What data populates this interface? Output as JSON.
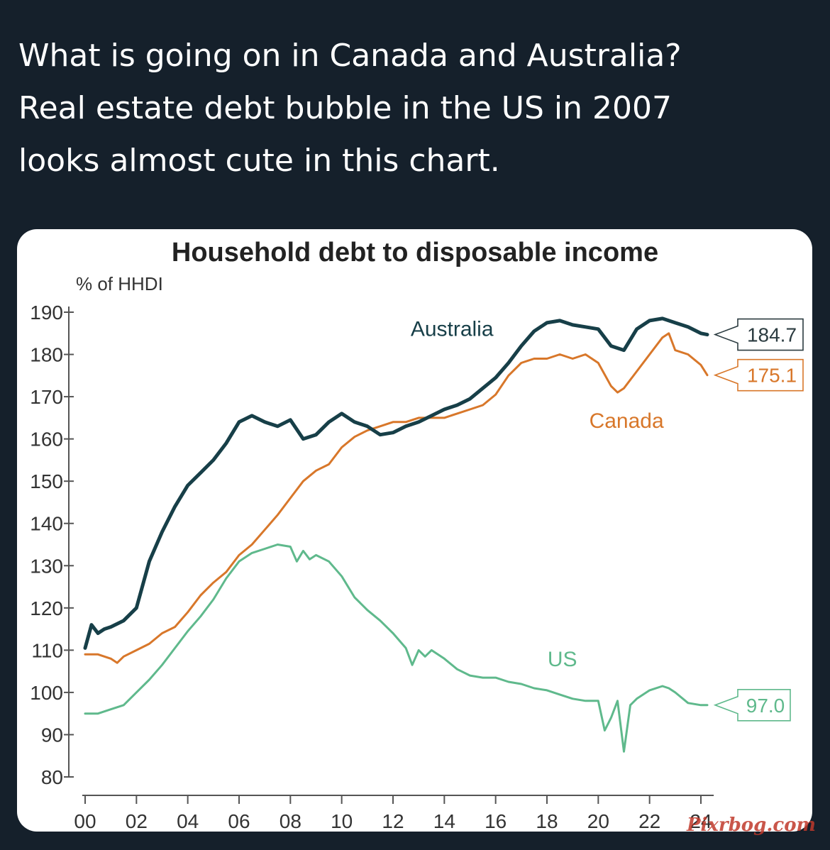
{
  "post": {
    "lines": [
      "What is going on in Canada and Australia?",
      "Real estate debt bubble in the US in 2007",
      "looks almost cute in this chart."
    ]
  },
  "watermark": "Pixrbog.com",
  "chart_data": {
    "type": "line",
    "title": "Household debt to disposable income",
    "ylabel": "% of HHDI",
    "xlabel": "",
    "ylim": [
      80,
      190
    ],
    "xlim": [
      2000,
      2024.5
    ],
    "y_ticks": [
      80,
      90,
      100,
      110,
      120,
      130,
      140,
      150,
      160,
      170,
      180,
      190
    ],
    "x_ticks": [
      {
        "value": 2000,
        "label": "00"
      },
      {
        "value": 2002,
        "label": "02"
      },
      {
        "value": 2004,
        "label": "04"
      },
      {
        "value": 2006,
        "label": "06"
      },
      {
        "value": 2008,
        "label": "08"
      },
      {
        "value": 2010,
        "label": "10"
      },
      {
        "value": 2012,
        "label": "12"
      },
      {
        "value": 2014,
        "label": "14"
      },
      {
        "value": 2016,
        "label": "16"
      },
      {
        "value": 2018,
        "label": "18"
      },
      {
        "value": 2020,
        "label": "20"
      },
      {
        "value": 2022,
        "label": "22"
      },
      {
        "value": 2024,
        "label": "24"
      }
    ],
    "grid": false,
    "series": [
      {
        "name": "Australia",
        "color": "#173f48",
        "end_label": "184.7",
        "x": [
          2000.0,
          2000.25,
          2000.5,
          2000.75,
          2001.0,
          2001.5,
          2002.0,
          2002.5,
          2003.0,
          2003.5,
          2004.0,
          2004.5,
          2005.0,
          2005.5,
          2006.0,
          2006.5,
          2007.0,
          2007.5,
          2008.0,
          2008.5,
          2009.0,
          2009.5,
          2010.0,
          2010.5,
          2011.0,
          2011.5,
          2012.0,
          2012.5,
          2013.0,
          2013.5,
          2014.0,
          2014.5,
          2015.0,
          2015.5,
          2016.0,
          2016.5,
          2017.0,
          2017.5,
          2018.0,
          2018.5,
          2019.0,
          2019.5,
          2020.0,
          2020.5,
          2021.0,
          2021.5,
          2022.0,
          2022.5,
          2023.0,
          2023.5,
          2024.0,
          2024.25
        ],
        "values": [
          110.5,
          116.0,
          114.0,
          115.0,
          115.5,
          117.0,
          120.0,
          131.0,
          138.0,
          144.0,
          149.0,
          152.0,
          155.0,
          159.0,
          164.0,
          165.5,
          164.0,
          163.0,
          164.5,
          160.0,
          161.0,
          164.0,
          166.0,
          164.0,
          163.0,
          161.0,
          161.5,
          163.0,
          164.0,
          165.5,
          167.0,
          168.0,
          169.5,
          172.0,
          174.5,
          178.0,
          182.0,
          185.5,
          187.5,
          188.0,
          187.0,
          186.5,
          186.0,
          182.0,
          181.0,
          186.0,
          188.0,
          188.5,
          187.5,
          186.5,
          185.0,
          184.7
        ]
      },
      {
        "name": "Canada",
        "color": "#d8772a",
        "end_label": "175.1",
        "x": [
          2000.0,
          2000.5,
          2001.0,
          2001.25,
          2001.5,
          2002.0,
          2002.5,
          2003.0,
          2003.5,
          2004.0,
          2004.5,
          2005.0,
          2005.5,
          2006.0,
          2006.5,
          2007.0,
          2007.5,
          2008.0,
          2008.5,
          2009.0,
          2009.5,
          2010.0,
          2010.5,
          2011.0,
          2011.5,
          2012.0,
          2012.5,
          2013.0,
          2013.5,
          2014.0,
          2014.5,
          2015.0,
          2015.5,
          2016.0,
          2016.5,
          2017.0,
          2017.5,
          2018.0,
          2018.5,
          2019.0,
          2019.5,
          2020.0,
          2020.5,
          2020.75,
          2021.0,
          2021.5,
          2022.0,
          2022.5,
          2022.75,
          2023.0,
          2023.5,
          2024.0,
          2024.25
        ],
        "values": [
          109.0,
          109.0,
          108.0,
          107.0,
          108.5,
          110.0,
          111.5,
          114.0,
          115.5,
          119.0,
          123.0,
          126.0,
          128.5,
          132.5,
          135.0,
          138.5,
          142.0,
          146.0,
          150.0,
          152.5,
          154.0,
          158.0,
          160.5,
          162.0,
          163.0,
          164.0,
          164.0,
          165.0,
          165.0,
          165.0,
          166.0,
          167.0,
          168.0,
          170.5,
          175.0,
          178.0,
          179.0,
          179.0,
          180.0,
          179.0,
          180.0,
          178.0,
          172.5,
          171.0,
          172.0,
          176.0,
          180.0,
          184.0,
          185.0,
          181.0,
          180.0,
          177.5,
          175.1
        ]
      },
      {
        "name": "US",
        "color": "#5fb98c",
        "end_label": "97.0",
        "x": [
          2000.0,
          2000.5,
          2001.0,
          2001.5,
          2002.0,
          2002.5,
          2003.0,
          2003.5,
          2004.0,
          2004.5,
          2005.0,
          2005.5,
          2006.0,
          2006.5,
          2007.0,
          2007.5,
          2008.0,
          2008.25,
          2008.5,
          2008.75,
          2009.0,
          2009.5,
          2010.0,
          2010.5,
          2011.0,
          2011.5,
          2012.0,
          2012.5,
          2012.75,
          2013.0,
          2013.25,
          2013.5,
          2014.0,
          2014.5,
          2015.0,
          2015.5,
          2016.0,
          2016.5,
          2017.0,
          2017.5,
          2018.0,
          2018.5,
          2019.0,
          2019.5,
          2020.0,
          2020.25,
          2020.5,
          2020.75,
          2021.0,
          2021.25,
          2021.5,
          2022.0,
          2022.5,
          2022.75,
          2023.0,
          2023.5,
          2024.0,
          2024.25
        ],
        "values": [
          95.0,
          95.0,
          96.0,
          97.0,
          100.0,
          103.0,
          106.5,
          110.5,
          114.5,
          118.0,
          122.0,
          127.0,
          131.0,
          133.0,
          134.0,
          135.0,
          134.5,
          131.0,
          133.5,
          131.5,
          132.5,
          131.0,
          127.5,
          122.5,
          119.5,
          117.0,
          114.0,
          110.5,
          106.5,
          110.0,
          108.5,
          110.0,
          108.0,
          105.5,
          104.0,
          103.5,
          103.5,
          102.5,
          102.0,
          101.0,
          100.5,
          99.5,
          98.5,
          98.0,
          98.0,
          91.0,
          94.0,
          98.0,
          86.0,
          97.0,
          98.5,
          100.5,
          101.5,
          101.0,
          100.0,
          97.5,
          97.0,
          97.0
        ]
      }
    ]
  }
}
